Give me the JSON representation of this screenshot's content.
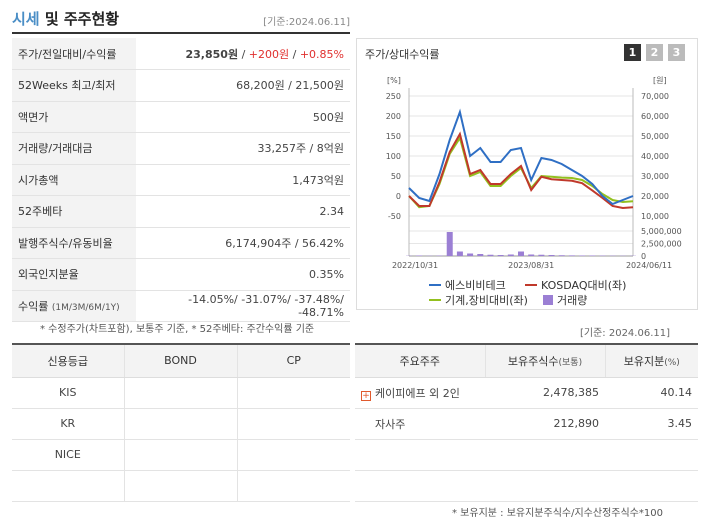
{
  "header": {
    "title_accent": "시세",
    "title_rest": " 및 주주현황",
    "date": "[기준:2024.06.11]"
  },
  "info_rows": [
    {
      "label": "주가/전일대비/수익률"
    },
    {
      "label": "52Weeks 최고/최저",
      "value": "68,200원 / 21,500원"
    },
    {
      "label": "액면가",
      "value": "500원"
    },
    {
      "label": "거래량/거래대금",
      "value": "33,257주 / 8억원"
    },
    {
      "label": "시가총액",
      "value": "1,473억원"
    },
    {
      "label": "52주베타",
      "value": "2.34"
    },
    {
      "label": "발행주식수/유동비율",
      "value": "6,174,904주 / 56.42%"
    },
    {
      "label": "외국인지분율",
      "value": "0.35%"
    },
    {
      "label": "수익률",
      "label_sub": "(1M/3M/6M/1Y)"
    }
  ],
  "price": {
    "price": "23,850원",
    "sep1": " / ",
    "change": "+200원",
    "sep2": " / ",
    "rate": "+0.85%"
  },
  "returns": "-14.05%/ -31.07%/ -37.48%/ -48.71%",
  "note1": "* 수정주가(차트포함), 보통주 기준, * 52주베타: 주간수익률 기준",
  "chart": {
    "title": "주가/상대수익률",
    "pages": [
      "1",
      "2",
      "3"
    ],
    "left_unit": "[%]",
    "right_unit": "[원]",
    "left_ticks": [
      "250",
      "200",
      "150",
      "100",
      "50",
      "0",
      "-50"
    ],
    "right_ticks": [
      "70,000",
      "60,000",
      "50,000",
      "40,000",
      "30,000",
      "20,000",
      "10,000"
    ],
    "vol_ticks": [
      "5,000,000",
      "2,500,000",
      "0"
    ],
    "x_labels": [
      "2022/10/31",
      "2023/08/31",
      "2024/06/11"
    ],
    "legend": [
      {
        "name": "에스비비테크",
        "color": "#2f6fc4"
      },
      {
        "name": "KOSDAQ대비(좌)",
        "color": "#c0392b"
      },
      {
        "name": "기계,장비대비(좌)",
        "color": "#93c01f"
      },
      {
        "name": "거래량",
        "color": "#9b7fd4"
      }
    ]
  },
  "chart_data": {
    "type": "line",
    "x": [
      "2022/10/31",
      "",
      "",
      "",
      "",
      "",
      "",
      "",
      "",
      "",
      "",
      "",
      "2023/08/31",
      "",
      "",
      "",
      "",
      "",
      "",
      "",
      "",
      "",
      "2024/06/11"
    ],
    "series": [
      {
        "name": "에스비비테크",
        "axis": "right",
        "values": [
          24000,
          19000,
          17500,
          31000,
          48000,
          62000,
          40000,
          44000,
          37000,
          37000,
          43000,
          44000,
          28000,
          39000,
          38000,
          36000,
          33000,
          30000,
          26000,
          20000,
          16000,
          18000,
          20000
        ]
      },
      {
        "name": "KOSDAQ대비(좌)",
        "axis": "left",
        "values": [
          0,
          -25,
          -25,
          35,
          110,
          155,
          55,
          65,
          30,
          30,
          55,
          75,
          15,
          48,
          42,
          40,
          38,
          32,
          14,
          -5,
          -25,
          -30,
          -28
        ]
      },
      {
        "name": "기계,장비대비(좌)",
        "axis": "left",
        "values": [
          0,
          -28,
          -25,
          30,
          105,
          145,
          50,
          60,
          25,
          25,
          50,
          70,
          20,
          50,
          48,
          46,
          45,
          40,
          25,
          5,
          -10,
          -15,
          -13
        ]
      },
      {
        "name": "거래량",
        "axis": "volume",
        "values": [
          50000,
          100000,
          50000,
          80000,
          4800000,
          900000,
          500000,
          400000,
          250000,
          200000,
          300000,
          900000,
          300000,
          250000,
          200000,
          150000,
          120000,
          100000,
          100000,
          80000,
          60000,
          50000,
          50000
        ]
      }
    ],
    "ylim_left": [
      -50,
      250
    ],
    "ylim_right": [
      10000,
      70000
    ],
    "ylim_volume": [
      0,
      5000000
    ],
    "legend": "bottom"
  },
  "date2": "[기준: 2024.06.11]",
  "credit": {
    "headers": [
      "신용등급",
      "BOND",
      "CP"
    ],
    "rows": [
      [
        "KIS",
        "",
        ""
      ],
      [
        "KR",
        "",
        ""
      ],
      [
        "NICE",
        "",
        ""
      ],
      [
        "",
        "",
        ""
      ]
    ]
  },
  "holders": {
    "headers": [
      "주요주주",
      "보유주식수",
      "(보통)",
      "보유지분",
      "(%)"
    ],
    "rows": [
      {
        "name": "케이피에프 외 2인",
        "shares": "2,478,385",
        "pct": "40.14"
      },
      {
        "name": "자사주",
        "shares": "212,890",
        "pct": "3.45"
      }
    ]
  },
  "note2": "* 보유지분 : 보유지분주식수/지수산정주식수*100"
}
